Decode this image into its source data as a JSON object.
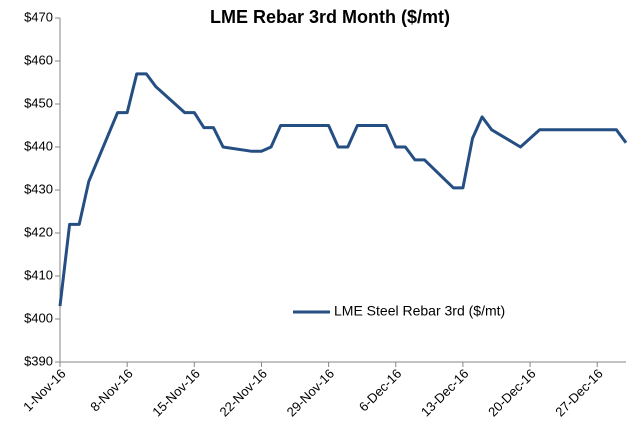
{
  "chart_data": {
    "type": "line",
    "title": "LME Rebar 3rd Month ($/mt)",
    "x": [
      "2016-11-01",
      "2016-11-02",
      "2016-11-03",
      "2016-11-04",
      "2016-11-07",
      "2016-11-08",
      "2016-11-09",
      "2016-11-10",
      "2016-11-11",
      "2016-11-14",
      "2016-11-15",
      "2016-11-16",
      "2016-11-17",
      "2016-11-18",
      "2016-11-21",
      "2016-11-22",
      "2016-11-23",
      "2016-11-24",
      "2016-11-25",
      "2016-11-28",
      "2016-11-29",
      "2016-11-30",
      "2016-12-01",
      "2016-12-02",
      "2016-12-05",
      "2016-12-06",
      "2016-12-07",
      "2016-12-08",
      "2016-12-09",
      "2016-12-12",
      "2016-12-13",
      "2016-12-14",
      "2016-12-15",
      "2016-12-16",
      "2016-12-19",
      "2016-12-20",
      "2016-12-21",
      "2016-12-22",
      "2016-12-23",
      "2016-12-26",
      "2016-12-27",
      "2016-12-28",
      "2016-12-29",
      "2016-12-30"
    ],
    "series": [
      {
        "name": "LME Steel Rebar 3rd ($/mt)",
        "color": "#254e83",
        "values": [
          403,
          422,
          422,
          432,
          448,
          448,
          457,
          457,
          454,
          448,
          448,
          444.5,
          444.5,
          440,
          439,
          439,
          440,
          445,
          445,
          445,
          445,
          440,
          440,
          445,
          445,
          440,
          440,
          437,
          437,
          430.5,
          430.5,
          442,
          447,
          444,
          440,
          442,
          444,
          444,
          444,
          444,
          444,
          444,
          444,
          441
        ]
      }
    ],
    "xlim": [
      "2016-11-01",
      "2016-12-30"
    ],
    "xticks": [
      {
        "value": "2016-11-01",
        "label": "1-Nov-16"
      },
      {
        "value": "2016-11-08",
        "label": "8-Nov-16"
      },
      {
        "value": "2016-11-15",
        "label": "15-Nov-16"
      },
      {
        "value": "2016-11-22",
        "label": "22-Nov-16"
      },
      {
        "value": "2016-11-29",
        "label": "29-Nov-16"
      },
      {
        "value": "2016-12-06",
        "label": "6-Dec-16"
      },
      {
        "value": "2016-12-13",
        "label": "13-Dec-16"
      },
      {
        "value": "2016-12-20",
        "label": "20-Dec-16"
      },
      {
        "value": "2016-12-27",
        "label": "27-Dec-16"
      }
    ],
    "ylim": [
      390,
      470
    ],
    "yticks": [
      {
        "value": 390,
        "label": "$390"
      },
      {
        "value": 400,
        "label": "$400"
      },
      {
        "value": 410,
        "label": "$410"
      },
      {
        "value": 420,
        "label": "$420"
      },
      {
        "value": 430,
        "label": "$430"
      },
      {
        "value": 440,
        "label": "$440"
      },
      {
        "value": 450,
        "label": "$450"
      },
      {
        "value": 460,
        "label": "$460"
      },
      {
        "value": 470,
        "label": "$470"
      }
    ],
    "legend": "center-right"
  }
}
